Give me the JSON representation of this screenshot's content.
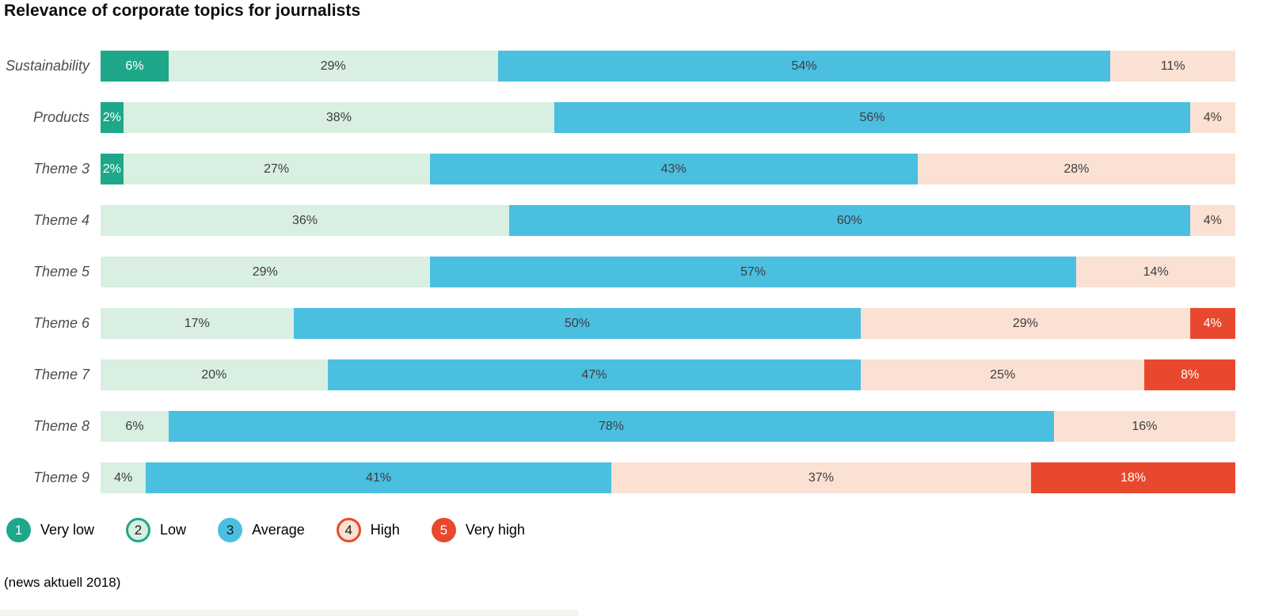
{
  "title": "Relevance of corporate topics for journalists",
  "source": "(news aktuell 2018)",
  "legend": [
    {
      "number": "1",
      "label": "Very low",
      "fill": "#1fa78a",
      "border": "none",
      "number_color": "#ffffff",
      "segment_text_color": "#ffffff"
    },
    {
      "number": "2",
      "label": "Low",
      "fill": "#d8efe1",
      "border": "#1fa78a",
      "number_color": "#1a1a1a",
      "segment_text_color": "#3d3d3d"
    },
    {
      "number": "3",
      "label": "Average",
      "fill": "#4bbfe0",
      "border": "none",
      "number_color": "#1a1a1a",
      "segment_text_color": "#3d3d3d"
    },
    {
      "number": "4",
      "label": "High",
      "fill": "#fbe1d3",
      "border": "#e8492e",
      "number_color": "#1a1a1a",
      "segment_text_color": "#3d3d3d"
    },
    {
      "number": "5",
      "label": "Very high",
      "fill": "#e8492e",
      "border": "none",
      "number_color": "#ffffff",
      "segment_text_color": "#ffffff"
    }
  ],
  "chart_data": {
    "type": "bar",
    "orientation": "horizontal",
    "stacked": true,
    "unit": "%",
    "title": "Relevance of corporate topics for journalists",
    "xlim": [
      0,
      100
    ],
    "grid": false,
    "legend_position": "bottom",
    "categories": [
      "Sustainability",
      "Products",
      "Theme 3",
      "Theme 4",
      "Theme 5",
      "Theme 6",
      "Theme 7",
      "Theme 8",
      "Theme 9"
    ],
    "series": [
      {
        "name": "Very low",
        "values": [
          6,
          2,
          2,
          0,
          0,
          0,
          0,
          0,
          0
        ]
      },
      {
        "name": "Low",
        "values": [
          29,
          38,
          27,
          36,
          29,
          17,
          20,
          6,
          4
        ]
      },
      {
        "name": "Average",
        "values": [
          54,
          56,
          43,
          60,
          57,
          50,
          47,
          78,
          41
        ]
      },
      {
        "name": "High",
        "values": [
          11,
          4,
          28,
          4,
          14,
          29,
          25,
          16,
          37
        ]
      },
      {
        "name": "Very high",
        "values": [
          0,
          0,
          0,
          0,
          0,
          4,
          8,
          0,
          18
        ]
      }
    ]
  }
}
